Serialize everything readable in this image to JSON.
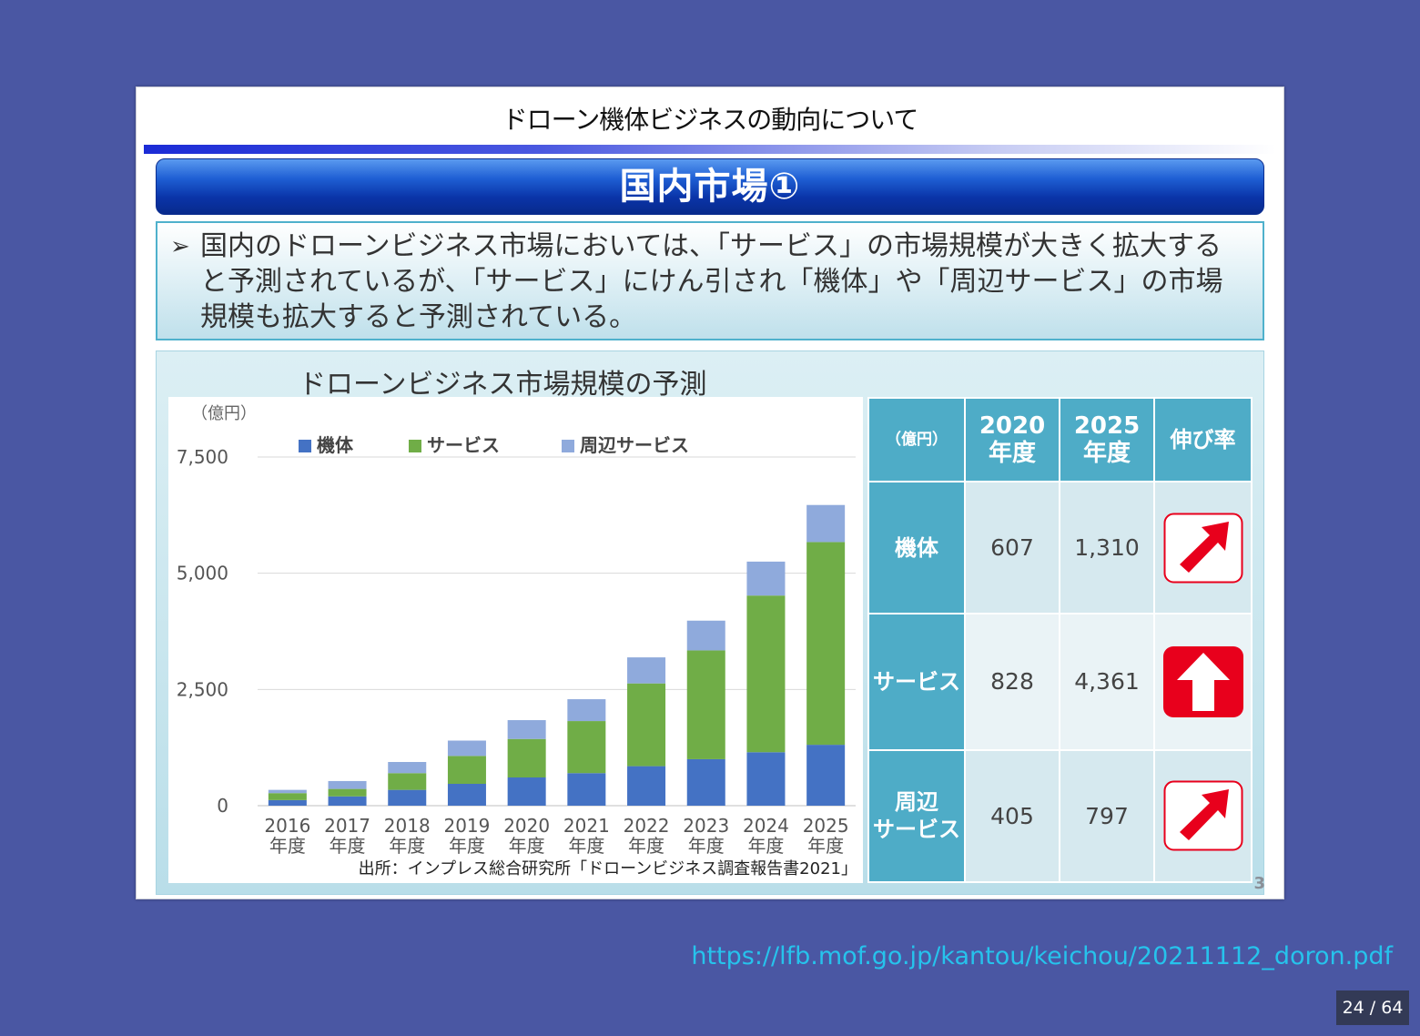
{
  "slide": {
    "title": "ドローン機体ビジネスの動向について",
    "section_title": "国内市場①",
    "summary_bullet": "➢",
    "summary": "国内のドローンビジネス市場においては、「サービス」の市場規模が大きく拡大すると予測されているが、「サービス」にけん引され「機体」や「周辺サービス」の市場規模も拡大すると予測されている。",
    "page_number": "3"
  },
  "chart_data": {
    "type": "bar",
    "stacked": true,
    "title": "ドローンビジネス市場規模の予測",
    "unit_label": "（億円）",
    "categories": [
      [
        "2016",
        "年度"
      ],
      [
        "2017",
        "年度"
      ],
      [
        "2018",
        "年度"
      ],
      [
        "2019",
        "年度"
      ],
      [
        "2020",
        "年度"
      ],
      [
        "2021",
        "年度"
      ],
      [
        "2022",
        "年度"
      ],
      [
        "2023",
        "年度"
      ],
      [
        "2024",
        "年度"
      ],
      [
        "2025",
        "年度"
      ]
    ],
    "series": [
      {
        "name": "機体",
        "color": "#4472c4",
        "values": [
          120,
          200,
          340,
          470,
          607,
          700,
          850,
          1000,
          1150,
          1310
        ]
      },
      {
        "name": "サービス",
        "color": "#70ad47",
        "values": [
          150,
          160,
          360,
          600,
          828,
          1120,
          1780,
          2340,
          3370,
          4361
        ]
      },
      {
        "name": "周辺サービス",
        "color": "#8faadc",
        "values": [
          70,
          170,
          240,
          330,
          405,
          470,
          560,
          640,
          730,
          797
        ]
      }
    ],
    "yticks": [
      0,
      2500,
      5000,
      7500
    ],
    "ytick_labels": [
      "0",
      "2,500",
      "5,000",
      "7,500"
    ],
    "ylim": [
      0,
      7500
    ],
    "legend_position": "top",
    "grid": true,
    "source": "出所：インプレス総合研究所「ドローンビジネス調査報告書2021」"
  },
  "table": {
    "unit": "（億円）",
    "col_2020": [
      "2020",
      "年度"
    ],
    "col_2025": [
      "2025",
      "年度"
    ],
    "col_rate": "伸び率",
    "rows": [
      {
        "label": [
          "機体"
        ],
        "v2020": "607",
        "v2025": "1,310",
        "arrow": "diagonal-up-arrow-icon"
      },
      {
        "label": [
          "サービス"
        ],
        "v2020": "828",
        "v2025": "4,361",
        "arrow": "bold-up-arrow-icon"
      },
      {
        "label": [
          "周辺",
          "サービス"
        ],
        "v2020": "405",
        "v2025": "797",
        "arrow": "diagonal-up-arrow-icon"
      }
    ]
  },
  "footer": {
    "url": "https://lfb.mof.go.jp/kantou/keichou/20211112_doron.pdf",
    "page_indicator": "24 / 64"
  },
  "colors": {
    "background": "#4a57a3",
    "banner": "#0a34a8",
    "table_header": "#4eacc7",
    "arrow_red": "#e8001c",
    "link": "#26c3ec"
  }
}
